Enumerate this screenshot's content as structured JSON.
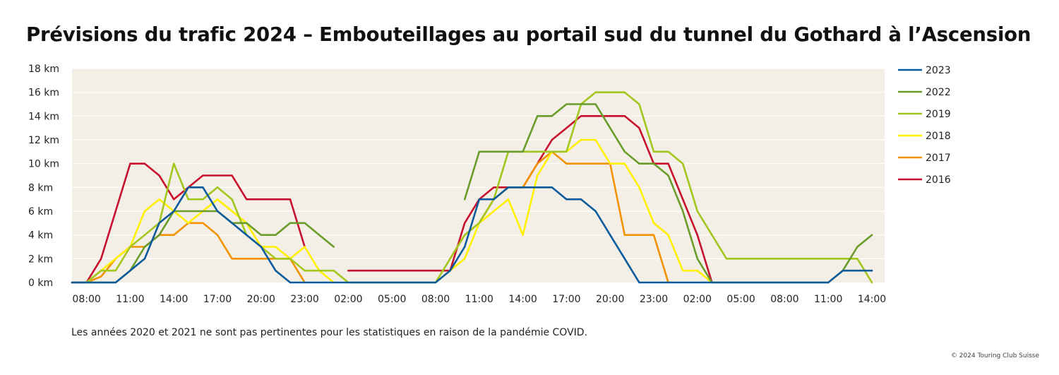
{
  "title": "Prévisions du trafic 2024 – Embouteillages au portail sud du tunnel du Gothard à l’Ascension",
  "note": "Les années 2020 et 2021 ne sont pas pertinentes pour les statistiques en raison de la pandémie COVID.",
  "copyright": "© 2024 Touring Club Suisse",
  "chart_data": {
    "type": "line",
    "title": "Prévisions du trafic 2024 – Embouteillages au portail sud du tunnel du Gothard à l’Ascension",
    "xlabel": "",
    "ylabel": "",
    "x_step_hours": 1,
    "x_start": "07:00",
    "x_tick_labels": [
      "08:00",
      "11:00",
      "14:00",
      "17:00",
      "20:00",
      "23:00",
      "02:00",
      "05:00",
      "08:00",
      "11:00",
      "14:00",
      "17:00",
      "20:00",
      "23:00",
      "02:00",
      "05:00",
      "08:00",
      "11:00",
      "14:00"
    ],
    "y_tick_labels": [
      "0 km",
      "2 km",
      "4 km",
      "6 km",
      "8 km",
      "10 km",
      "12 km",
      "14 km",
      "16 km",
      "18 km"
    ],
    "ylim": [
      0,
      18
    ],
    "grid": true,
    "legend_position": "right",
    "background": "#f3efe7",
    "series": [
      {
        "name": "2023",
        "color": "#0a5a9c",
        "values": [
          0,
          0,
          0,
          0,
          1,
          2,
          5,
          6,
          8,
          8,
          6,
          5,
          4,
          3,
          1,
          0,
          0,
          0,
          0,
          0,
          0,
          0,
          0,
          0,
          0,
          0,
          1,
          3,
          7,
          7,
          8,
          8,
          8,
          8,
          7,
          7,
          6,
          4,
          2,
          0,
          0,
          0,
          0,
          0,
          0,
          0,
          0,
          0,
          0,
          0,
          0,
          0,
          0,
          1,
          1,
          1
        ]
      },
      {
        "name": "2022",
        "color": "#6a9c2a",
        "values": [
          0,
          0,
          0,
          0,
          1,
          3,
          4,
          6,
          6,
          6,
          6,
          5,
          5,
          4,
          4,
          5,
          5,
          4,
          3,
          null,
          null,
          null,
          null,
          null,
          null,
          null,
          null,
          7,
          11,
          11,
          11,
          11,
          14,
          14,
          15,
          15,
          15,
          13,
          11,
          10,
          10,
          9,
          6,
          2,
          0,
          0,
          0,
          0,
          0,
          0,
          0,
          0,
          0,
          1,
          3,
          4
        ]
      },
      {
        "name": "2019",
        "color": "#a3c61c",
        "values": [
          null,
          0,
          1,
          1,
          3,
          4,
          5,
          10,
          7,
          7,
          8,
          7,
          4,
          3,
          2,
          2,
          1,
          1,
          1,
          0,
          0,
          0,
          0,
          0,
          0,
          0,
          2,
          4,
          5,
          7,
          11,
          11,
          11,
          11,
          11,
          15,
          16,
          16,
          16,
          15,
          11,
          11,
          10,
          6,
          4,
          2,
          2,
          2,
          2,
          2,
          2,
          2,
          2,
          2,
          2,
          0
        ]
      },
      {
        "name": "2018",
        "color": "#fff000",
        "values": [
          null,
          0,
          1,
          2,
          3,
          6,
          7,
          6,
          5,
          6,
          7,
          6,
          5,
          3,
          3,
          2,
          3,
          1,
          0,
          null,
          null,
          null,
          null,
          null,
          null,
          0,
          1,
          2,
          5,
          6,
          7,
          4,
          9,
          11,
          11,
          12,
          12,
          10,
          10,
          8,
          5,
          4,
          1,
          1,
          0
        ]
      },
      {
        "name": "2017",
        "color": "#f39200",
        "values": [
          null,
          0,
          0.5,
          2,
          3,
          3,
          4,
          4,
          5,
          5,
          4,
          2,
          2,
          2,
          2,
          2,
          0,
          null,
          null,
          null,
          null,
          null,
          null,
          null,
          null,
          null,
          2,
          4,
          5,
          7,
          8,
          8,
          10,
          11,
          10,
          10,
          10,
          10,
          4,
          4,
          4,
          0
        ]
      },
      {
        "name": "2016",
        "color": "#c8102e",
        "values": [
          0,
          0,
          2,
          6,
          10,
          10,
          9,
          7,
          8,
          9,
          9,
          9,
          7,
          7,
          7,
          7,
          3,
          null,
          null,
          1,
          1,
          1,
          1,
          1,
          1,
          1,
          1,
          5,
          7,
          8,
          8,
          8,
          10,
          12,
          13,
          14,
          14,
          14,
          14,
          13,
          10,
          10,
          7,
          4,
          0
        ]
      }
    ]
  }
}
